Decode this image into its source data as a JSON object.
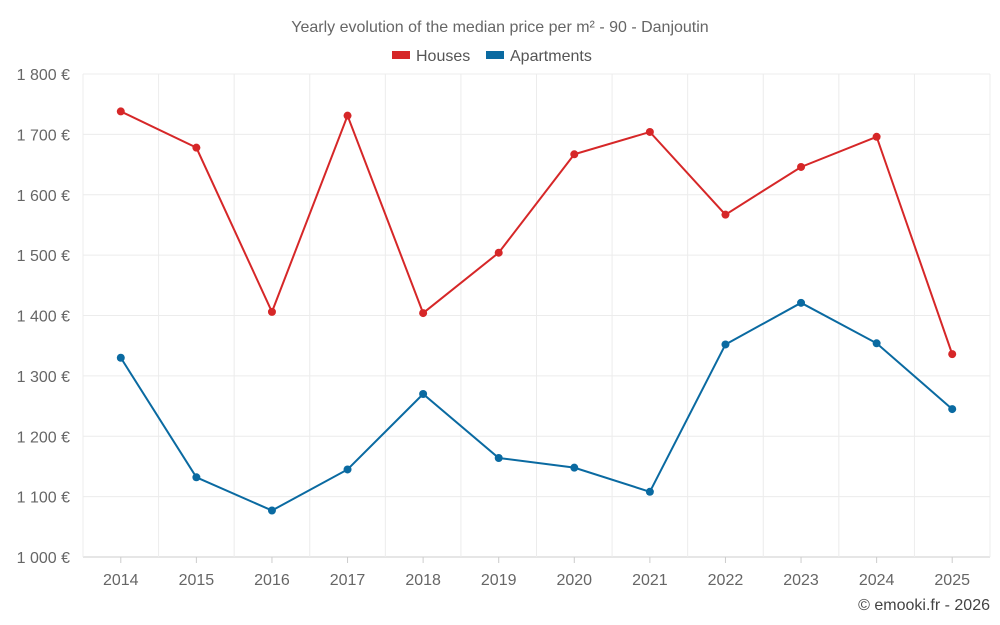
{
  "chart_data": {
    "type": "line",
    "title": "Yearly evolution of the median price per m² - 90 - Danjoutin",
    "categories": [
      "2014",
      "2015",
      "2016",
      "2017",
      "2018",
      "2019",
      "2020",
      "2021",
      "2022",
      "2023",
      "2024",
      "2025"
    ],
    "series": [
      {
        "name": "Houses",
        "color": "#d62728",
        "values": [
          1738,
          1678,
          1406,
          1731,
          1404,
          1504,
          1667,
          1704,
          1567,
          1646,
          1696,
          1336
        ]
      },
      {
        "name": "Apartments",
        "color": "#0a6aa1",
        "values": [
          1330,
          1132,
          1077,
          1145,
          1270,
          1164,
          1148,
          1108,
          1352,
          1421,
          1354,
          1245
        ]
      }
    ],
    "ylim": [
      1000,
      1800
    ],
    "yticks": [
      1000,
      1100,
      1200,
      1300,
      1400,
      1500,
      1600,
      1700,
      1800
    ],
    "ytick_labels": [
      "1 000 €",
      "1 100 €",
      "1 200 €",
      "1 300 €",
      "1 400 €",
      "1 500 €",
      "1 600 €",
      "1 700 €",
      "1 800 €"
    ],
    "xlabel": "",
    "ylabel": "",
    "grid": true,
    "legend_position": "top-center"
  },
  "credit": "© emooki.fr - 2026"
}
